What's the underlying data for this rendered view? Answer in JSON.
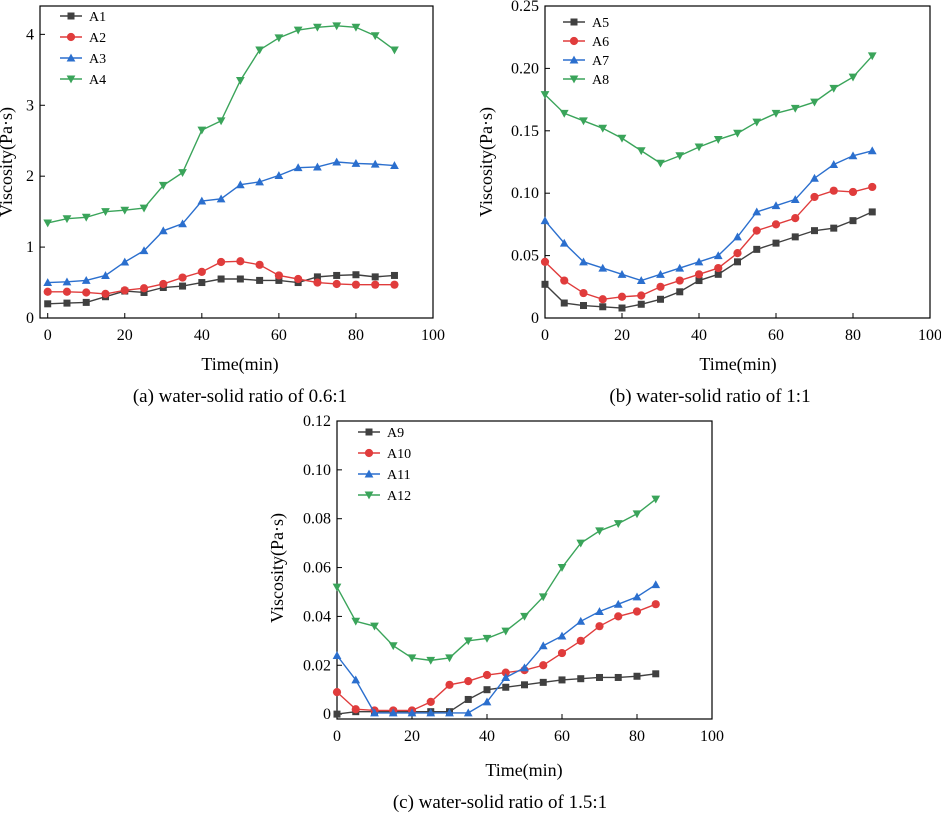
{
  "chart_data": [
    {
      "type": "line",
      "caption": "(a) water-solid ratio of 0.6:1",
      "xlabel": "Time(min)",
      "ylabel": "Viscosity(Pa·s)",
      "xlim": [
        -2,
        100
      ],
      "ylim": [
        0,
        4.4
      ],
      "xticks": [
        0,
        20,
        40,
        60,
        80,
        100
      ],
      "xtick_labels": [
        "0",
        "20",
        "40",
        "60",
        "80",
        "100"
      ],
      "yticks": [
        0,
        1,
        2,
        3,
        4
      ],
      "ytick_labels": [
        "0",
        "1",
        "2",
        "3",
        "4"
      ],
      "legend_position": "top-left",
      "x": [
        0,
        5,
        10,
        15,
        20,
        25,
        30,
        35,
        40,
        45,
        50,
        55,
        60,
        65,
        70,
        75,
        80,
        85,
        90
      ],
      "series": [
        {
          "name": "A1",
          "color": "#404040",
          "marker": "square",
          "values": [
            0.2,
            0.21,
            0.22,
            0.3,
            0.38,
            0.36,
            0.43,
            0.45,
            0.5,
            0.55,
            0.55,
            0.53,
            0.53,
            0.5,
            0.58,
            0.6,
            0.61,
            0.58,
            0.6
          ]
        },
        {
          "name": "A2",
          "color": "#e03c3c",
          "marker": "circle",
          "values": [
            0.37,
            0.37,
            0.36,
            0.34,
            0.39,
            0.42,
            0.48,
            0.57,
            0.65,
            0.79,
            0.8,
            0.75,
            0.6,
            0.55,
            0.5,
            0.48,
            0.47,
            0.47,
            0.47
          ]
        },
        {
          "name": "A3",
          "color": "#2b6fce",
          "marker": "triangle-up",
          "values": [
            0.5,
            0.51,
            0.53,
            0.6,
            0.79,
            0.95,
            1.23,
            1.33,
            1.65,
            1.68,
            1.88,
            1.92,
            2.01,
            2.12,
            2.13,
            2.2,
            2.18,
            2.17,
            2.15
          ]
        },
        {
          "name": "A4",
          "color": "#3aa45a",
          "marker": "triangle-down",
          "values": [
            1.34,
            1.4,
            1.42,
            1.5,
            1.52,
            1.55,
            1.87,
            2.05,
            2.65,
            2.78,
            3.35,
            3.78,
            3.95,
            4.06,
            4.1,
            4.12,
            4.1,
            3.98,
            3.78
          ]
        }
      ]
    },
    {
      "type": "line",
      "caption": "(b) water-solid ratio of 1:1",
      "xlabel": "Time(min)",
      "ylabel": "Viscosity(Pa·s)",
      "xlim": [
        0,
        100
      ],
      "ylim": [
        0,
        0.25
      ],
      "xticks": [
        0,
        20,
        40,
        60,
        80,
        100
      ],
      "xtick_labels": [
        "0",
        "20",
        "40",
        "60",
        "80",
        "100"
      ],
      "yticks": [
        0,
        0.05,
        0.1,
        0.15,
        0.2,
        0.25
      ],
      "ytick_labels": [
        "0",
        "0.05",
        "0.10",
        "0.15",
        "0.20",
        "0.25"
      ],
      "legend_position": "top-left",
      "x": [
        0,
        5,
        10,
        15,
        20,
        25,
        30,
        35,
        40,
        45,
        50,
        55,
        60,
        65,
        70,
        75,
        80,
        85
      ],
      "series": [
        {
          "name": "A5",
          "color": "#404040",
          "marker": "square",
          "values": [
            0.027,
            0.012,
            0.01,
            0.009,
            0.008,
            0.011,
            0.015,
            0.021,
            0.03,
            0.035,
            0.045,
            0.055,
            0.06,
            0.065,
            0.07,
            0.072,
            0.078,
            0.085
          ]
        },
        {
          "name": "A6",
          "color": "#e03c3c",
          "marker": "circle",
          "values": [
            0.045,
            0.03,
            0.02,
            0.015,
            0.017,
            0.018,
            0.025,
            0.03,
            0.035,
            0.04,
            0.052,
            0.07,
            0.075,
            0.08,
            0.097,
            0.102,
            0.101,
            0.105
          ]
        },
        {
          "name": "A7",
          "color": "#2b6fce",
          "marker": "triangle-up",
          "values": [
            0.078,
            0.06,
            0.045,
            0.04,
            0.035,
            0.03,
            0.035,
            0.04,
            0.045,
            0.05,
            0.065,
            0.085,
            0.09,
            0.095,
            0.112,
            0.123,
            0.13,
            0.134
          ]
        },
        {
          "name": "A8",
          "color": "#3aa45a",
          "marker": "triangle-down",
          "values": [
            0.179,
            0.164,
            0.158,
            0.152,
            0.144,
            0.134,
            0.124,
            0.13,
            0.137,
            0.143,
            0.148,
            0.157,
            0.164,
            0.168,
            0.173,
            0.184,
            0.193,
            0.21
          ]
        }
      ]
    },
    {
      "type": "line",
      "caption": "(c) water-solid ratio of 1.5:1",
      "xlabel": "Time(min)",
      "ylabel": "Viscosity(Pa·s)",
      "xlim": [
        0,
        100
      ],
      "ylim": [
        -0.002,
        0.12
      ],
      "xticks": [
        0,
        20,
        40,
        60,
        80,
        100
      ],
      "xtick_labels": [
        "0",
        "20",
        "40",
        "60",
        "80",
        "100"
      ],
      "yticks": [
        0,
        0.02,
        0.04,
        0.06,
        0.08,
        0.1,
        0.12
      ],
      "ytick_labels": [
        "0",
        "0.02",
        "0.04",
        "0.06",
        "0.08",
        "0.10",
        "0.12"
      ],
      "legend_position": "top-left",
      "x": [
        0,
        5,
        10,
        15,
        20,
        25,
        30,
        35,
        40,
        45,
        50,
        55,
        60,
        65,
        70,
        75,
        80,
        85
      ],
      "series": [
        {
          "name": "A9",
          "color": "#404040",
          "marker": "square",
          "values": [
            0.0,
            0.001,
            0.001,
            0.001,
            0.001,
            0.001,
            0.001,
            0.006,
            0.01,
            0.011,
            0.012,
            0.013,
            0.014,
            0.0145,
            0.015,
            0.015,
            0.0155,
            0.0165
          ]
        },
        {
          "name": "A10",
          "color": "#e03c3c",
          "marker": "circle",
          "values": [
            0.009,
            0.002,
            0.0015,
            0.0015,
            0.0015,
            0.005,
            0.012,
            0.0135,
            0.016,
            0.017,
            0.018,
            0.02,
            0.025,
            0.03,
            0.036,
            0.04,
            0.042,
            0.045
          ]
        },
        {
          "name": "A11",
          "color": "#2b6fce",
          "marker": "triangle-up",
          "values": [
            0.024,
            0.014,
            0.0005,
            0.0005,
            0.0005,
            0.0005,
            0.0005,
            0.0005,
            0.005,
            0.015,
            0.019,
            0.028,
            0.032,
            0.038,
            0.042,
            0.045,
            0.048,
            0.053
          ]
        },
        {
          "name": "A12",
          "color": "#3aa45a",
          "marker": "triangle-down",
          "values": [
            0.052,
            0.038,
            0.036,
            0.028,
            0.023,
            0.022,
            0.023,
            0.03,
            0.031,
            0.034,
            0.04,
            0.048,
            0.06,
            0.07,
            0.075,
            0.078,
            0.082,
            0.088
          ]
        }
      ]
    }
  ]
}
